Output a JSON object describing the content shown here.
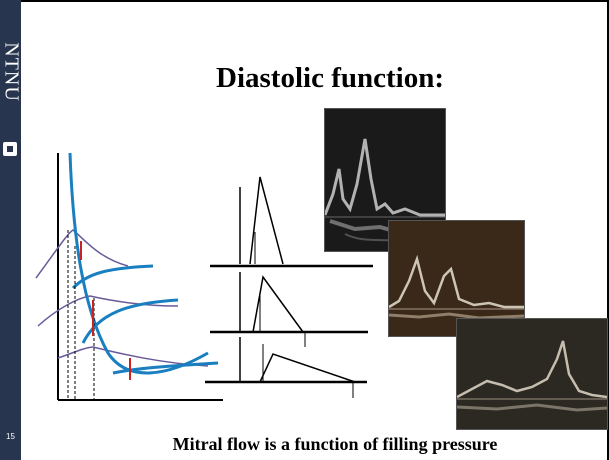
{
  "sidebar": {
    "logo_text": "NTNU",
    "slide_number": "15"
  },
  "slide": {
    "title": "Diastolic function:",
    "caption": "Mitral flow is a function of filling pressure"
  },
  "colors": {
    "sidebar": "#27364e",
    "curve_blue": "#1a7fc0",
    "curve_purple": "#6a5a9a",
    "marker_red": "#cc2222",
    "echo_dark": "#1a1a1a",
    "echo_brown": "#4a3020"
  },
  "icons": {
    "logo": "ntnu-emblem-icon"
  }
}
